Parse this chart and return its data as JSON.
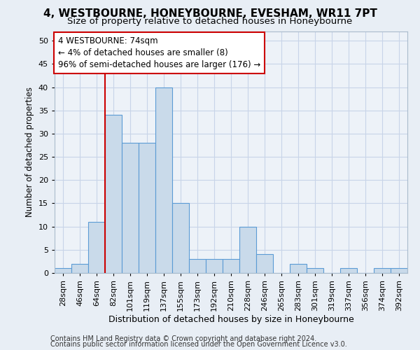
{
  "title": "4, WESTBOURNE, HONEYBOURNE, EVESHAM, WR11 7PT",
  "subtitle": "Size of property relative to detached houses in Honeybourne",
  "xlabel": "Distribution of detached houses by size in Honeybourne",
  "ylabel": "Number of detached properties",
  "footer1": "Contains HM Land Registry data © Crown copyright and database right 2024.",
  "footer2": "Contains public sector information licensed under the Open Government Licence v3.0.",
  "categories": [
    "28sqm",
    "46sqm",
    "64sqm",
    "82sqm",
    "101sqm",
    "119sqm",
    "137sqm",
    "155sqm",
    "173sqm",
    "192sqm",
    "210sqm",
    "228sqm",
    "246sqm",
    "265sqm",
    "283sqm",
    "301sqm",
    "319sqm",
    "337sqm",
    "356sqm",
    "374sqm",
    "392sqm"
  ],
  "values": [
    1,
    2,
    11,
    34,
    28,
    28,
    40,
    15,
    3,
    3,
    3,
    10,
    4,
    0,
    2,
    1,
    0,
    1,
    0,
    1,
    1
  ],
  "bar_color": "#c9daea",
  "bar_edge_color": "#5b9bd5",
  "bar_width": 1.0,
  "vline_x": 3.0,
  "vline_color": "#cc0000",
  "annotation_line1": "4 WESTBOURNE: 74sqm",
  "annotation_line2": "← 4% of detached houses are smaller (8)",
  "annotation_line3": "96% of semi-detached houses are larger (176) →",
  "annotation_box_edge": "#cc0000",
  "annotation_box_face": "#ffffff",
  "ylim": [
    0,
    52
  ],
  "yticks": [
    0,
    5,
    10,
    15,
    20,
    25,
    30,
    35,
    40,
    45,
    50
  ],
  "grid_color": "#c8d4e8",
  "bg_color": "#e8eef5",
  "plot_bg_color": "#edf2f8",
  "title_fontsize": 11,
  "subtitle_fontsize": 9.5,
  "xlabel_fontsize": 9,
  "ylabel_fontsize": 8.5,
  "tick_fontsize": 8,
  "footer_fontsize": 7,
  "annotation_fontsize": 8.5
}
